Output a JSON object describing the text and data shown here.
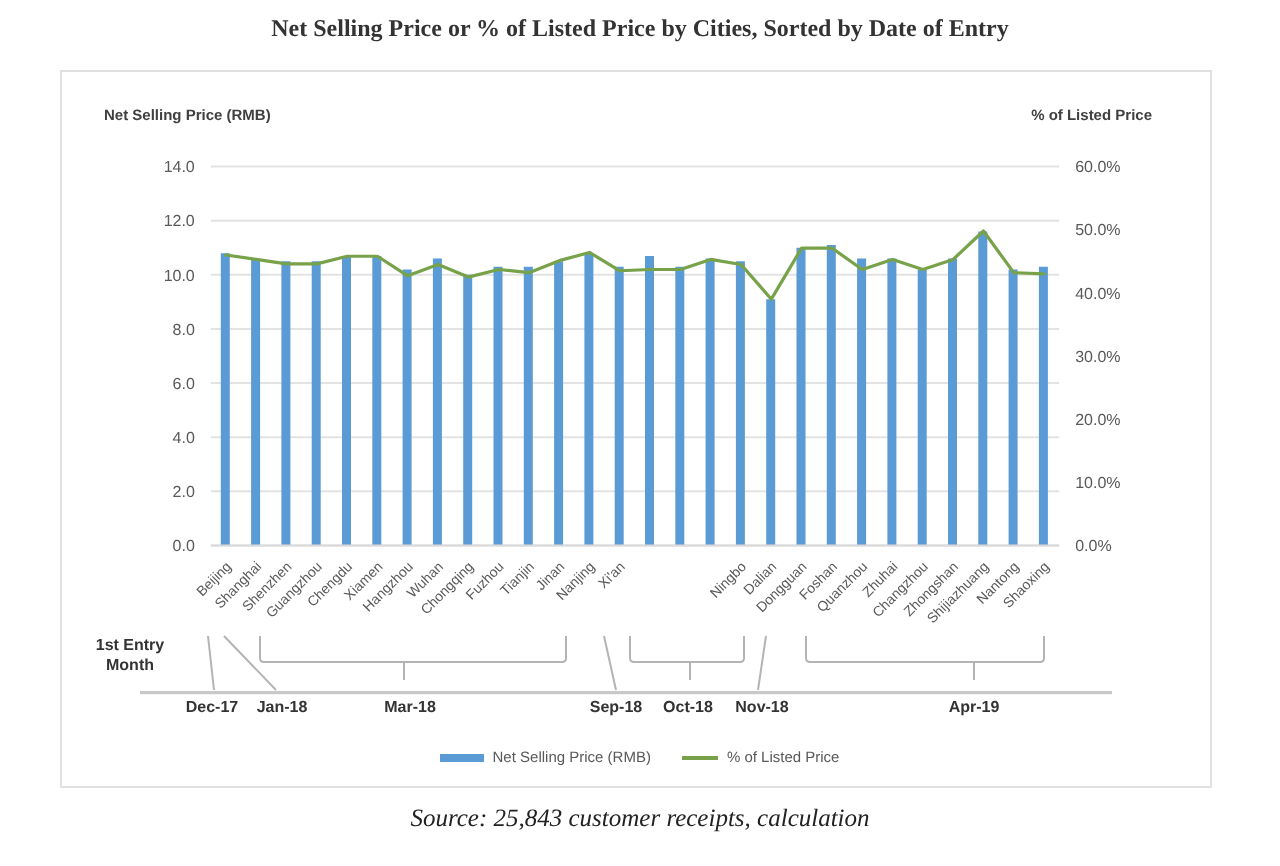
{
  "chart_data": {
    "type": "bar",
    "title": "Net Selling Price or % of Listed Price by Cities, Sorted by Date of Entry",
    "ylabel": "Net Selling Price (RMB)",
    "y2label": "% of Listed Price",
    "categories": [
      "Beijing",
      "Shanghai",
      "Shenzhen",
      "Guangzhou",
      "Chengdu",
      "Xiamen",
      "Hangzhou",
      "Wuhan",
      "Chongqing",
      "Fuzhou",
      "Tianjin",
      "Jinan",
      "Nanjing",
      "Xi'an",
      null,
      null,
      null,
      "Ningbo",
      "Dalian",
      "Dongguan",
      "Foshan",
      "Quanzhou",
      "Zhuhai",
      "Changzhou",
      "Zhongshan",
      "Shijiazhuang",
      "Nantong",
      "Shaoxing"
    ],
    "series": [
      {
        "name": "Net Selling Price (RMB)",
        "color": "#5b9bd5",
        "values": [
          10.8,
          10.6,
          10.5,
          10.5,
          10.7,
          10.7,
          10.2,
          10.6,
          10.0,
          10.3,
          10.3,
          10.5,
          10.8,
          10.3,
          10.7,
          10.3,
          10.6,
          10.5,
          9.1,
          11.0,
          11.1,
          10.6,
          10.6,
          10.2,
          10.6,
          11.6,
          10.2,
          10.3
        ]
      },
      {
        "name": "% of Listed Price",
        "type": "line",
        "axis": "y2",
        "color": "#77a24a",
        "values": [
          46.0,
          45.3,
          44.6,
          44.6,
          45.8,
          45.8,
          42.7,
          44.5,
          42.5,
          43.7,
          43.2,
          45.1,
          46.4,
          43.5,
          43.7,
          43.7,
          45.3,
          44.5,
          39.0,
          47.1,
          47.1,
          43.7,
          45.3,
          43.7,
          45.3,
          49.8,
          43.2,
          43.0
        ]
      }
    ],
    "ylim": [
      0,
      14
    ],
    "yticks": [
      {
        "value": 0,
        "label": "0.0"
      },
      {
        "value": 2,
        "label": "2.0"
      },
      {
        "value": 4,
        "label": "4.0"
      },
      {
        "value": 6,
        "label": "6.0"
      },
      {
        "value": 8,
        "label": "8.0"
      },
      {
        "value": 10,
        "label": "10.0"
      },
      {
        "value": 12,
        "label": "12.0"
      },
      {
        "value": 14,
        "label": "14.0"
      }
    ],
    "y2lim": [
      0,
      60
    ],
    "y2ticks": [
      {
        "value": 0,
        "label": "0.0%"
      },
      {
        "value": 10,
        "label": "10.0%"
      },
      {
        "value": 20,
        "label": "20.0%"
      },
      {
        "value": 30,
        "label": "30.0%"
      },
      {
        "value": 40,
        "label": "40.0%"
      },
      {
        "value": 50,
        "label": "50.0%"
      },
      {
        "value": 60,
        "label": "60.0%"
      }
    ],
    "grid": "y",
    "legend": "bottom",
    "annotations": [
      "1st Entry Month",
      "Dec-17",
      "Jan-18",
      "Mar-18",
      "Sep-18",
      "Oct-18",
      "Nov-18",
      "Apr-19",
      "Source: 25,843 customer receipts, calculation"
    ]
  }
}
